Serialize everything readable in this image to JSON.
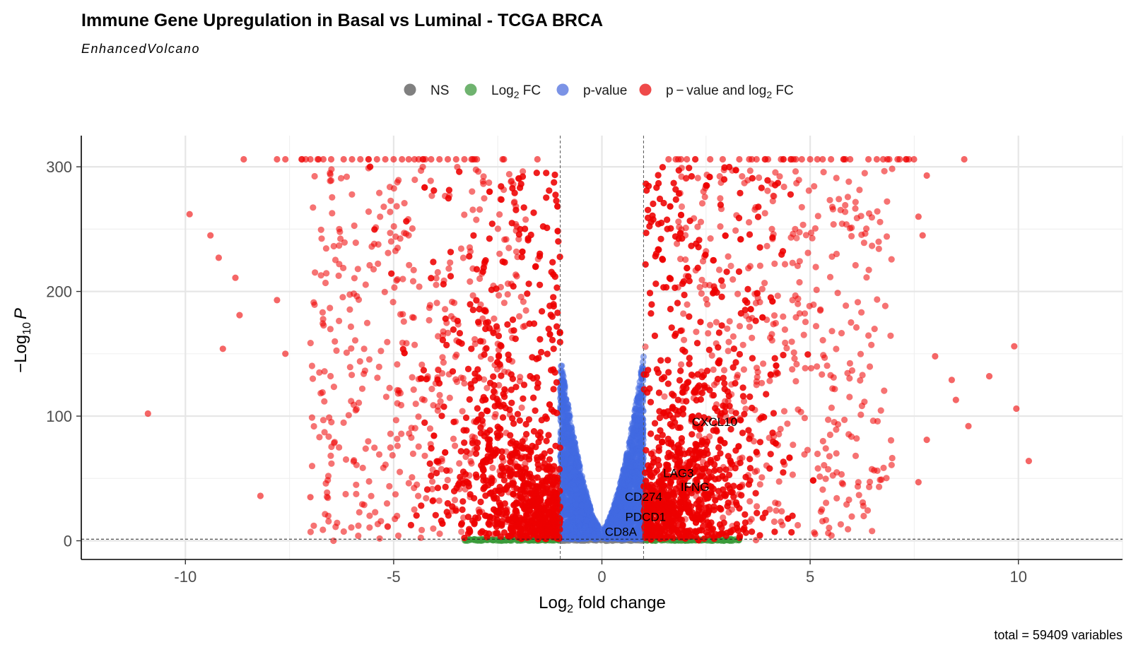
{
  "chart_data": {
    "type": "scatter",
    "title": "Immune Gene Upregulation in Basal vs Luminal - TCGA BRCA",
    "subtitle": "EnhancedVolcano",
    "xlabel_main": "Log",
    "xlabel_sub": "2",
    "xlabel_rest": " fold change",
    "ylabel_pre": "−Log",
    "ylabel_sub": "10",
    "ylabel_var": "P",
    "caption": "total = 59409 variables",
    "xlim": [
      -12.5,
      12.5
    ],
    "ylim": [
      -15,
      325
    ],
    "x_ticks": [
      -10,
      -5,
      0,
      5,
      10
    ],
    "y_ticks": [
      0,
      100,
      200,
      300
    ],
    "x_tick_labels": [
      "-10",
      "-5",
      "0",
      "5",
      "10"
    ],
    "y_tick_labels": [
      "0",
      "100",
      "200",
      "300"
    ],
    "fc_cutoff": 1,
    "p_cutoff_neglog10": 1.3,
    "grid": true,
    "legend_position": "top",
    "legend": [
      {
        "key": "NS",
        "label": "NS",
        "color": "#808080"
      },
      {
        "key": "FC",
        "label_main": "Log",
        "label_sub": "2",
        "label_rest": " FC",
        "color": "#6fb36f"
      },
      {
        "key": "P",
        "label": "p-value",
        "color": "#7b93e6"
      },
      {
        "key": "PFC",
        "label_main": "p − value and log",
        "label_sub": "2",
        "label_rest": " FC",
        "color": "#ef4a4a"
      }
    ],
    "colors": {
      "NS": "#808080",
      "FC": "#3a9a3a",
      "P": "#4169e1",
      "PFC": "#ee0000"
    },
    "labeled_genes": [
      {
        "gene": "CXCL10",
        "x": 2.16,
        "y": 92
      },
      {
        "gene": "LAG3",
        "x": 1.47,
        "y": 51
      },
      {
        "gene": "IFNG",
        "x": 1.89,
        "y": 40
      },
      {
        "gene": "CD274",
        "x": 0.55,
        "y": 32
      },
      {
        "gene": "PDCD1",
        "x": 0.56,
        "y": 16
      },
      {
        "gene": "CD8A",
        "x": 0.07,
        "y": 4
      }
    ],
    "extreme_points": [
      {
        "x": -10.9,
        "y": 102
      },
      {
        "x": -9.9,
        "y": 262
      },
      {
        "x": -9.4,
        "y": 245
      },
      {
        "x": -9.2,
        "y": 227
      },
      {
        "x": -9.1,
        "y": 154
      },
      {
        "x": -8.8,
        "y": 211
      },
      {
        "x": -8.7,
        "y": 181
      },
      {
        "x": -8.2,
        "y": 36
      },
      {
        "x": -7.8,
        "y": 193
      },
      {
        "x": -7.6,
        "y": 150
      },
      {
        "x": -7.0,
        "y": 35
      },
      {
        "x": 7.6,
        "y": 47
      },
      {
        "x": 7.8,
        "y": 81
      },
      {
        "x": 8.0,
        "y": 148
      },
      {
        "x": 8.4,
        "y": 129
      },
      {
        "x": 8.5,
        "y": 113
      },
      {
        "x": 8.8,
        "y": 92
      },
      {
        "x": 9.3,
        "y": 132
      },
      {
        "x": 9.9,
        "y": 156
      },
      {
        "x": 9.95,
        "y": 106
      },
      {
        "x": 10.25,
        "y": 64
      },
      {
        "x": 8.7,
        "y": 306
      },
      {
        "x": 7.8,
        "y": 293
      },
      {
        "x": 7.7,
        "y": 245
      },
      {
        "x": 7.6,
        "y": 260
      }
    ],
    "capped_value": 306,
    "capped_x_left": [
      -7.8,
      -7.6,
      -7.2,
      -7.0,
      -6.8,
      -6.5,
      -6.2,
      -6.0,
      -5.8,
      -5.6,
      -5.4,
      -5.2,
      -5.0,
      -4.8,
      -4.5,
      -4.3,
      -4.1,
      -3.9,
      -3.7,
      -3.5,
      -3.1,
      -3.0,
      -8.6
    ],
    "capped_x_right": [
      1.6,
      1.9,
      2.6,
      2.9,
      3.6,
      4.3,
      4.6,
      4.8,
      5.0,
      5.3,
      5.5,
      5.8,
      6.4,
      6.6,
      6.9,
      7.1,
      7.3,
      3.3
    ]
  }
}
